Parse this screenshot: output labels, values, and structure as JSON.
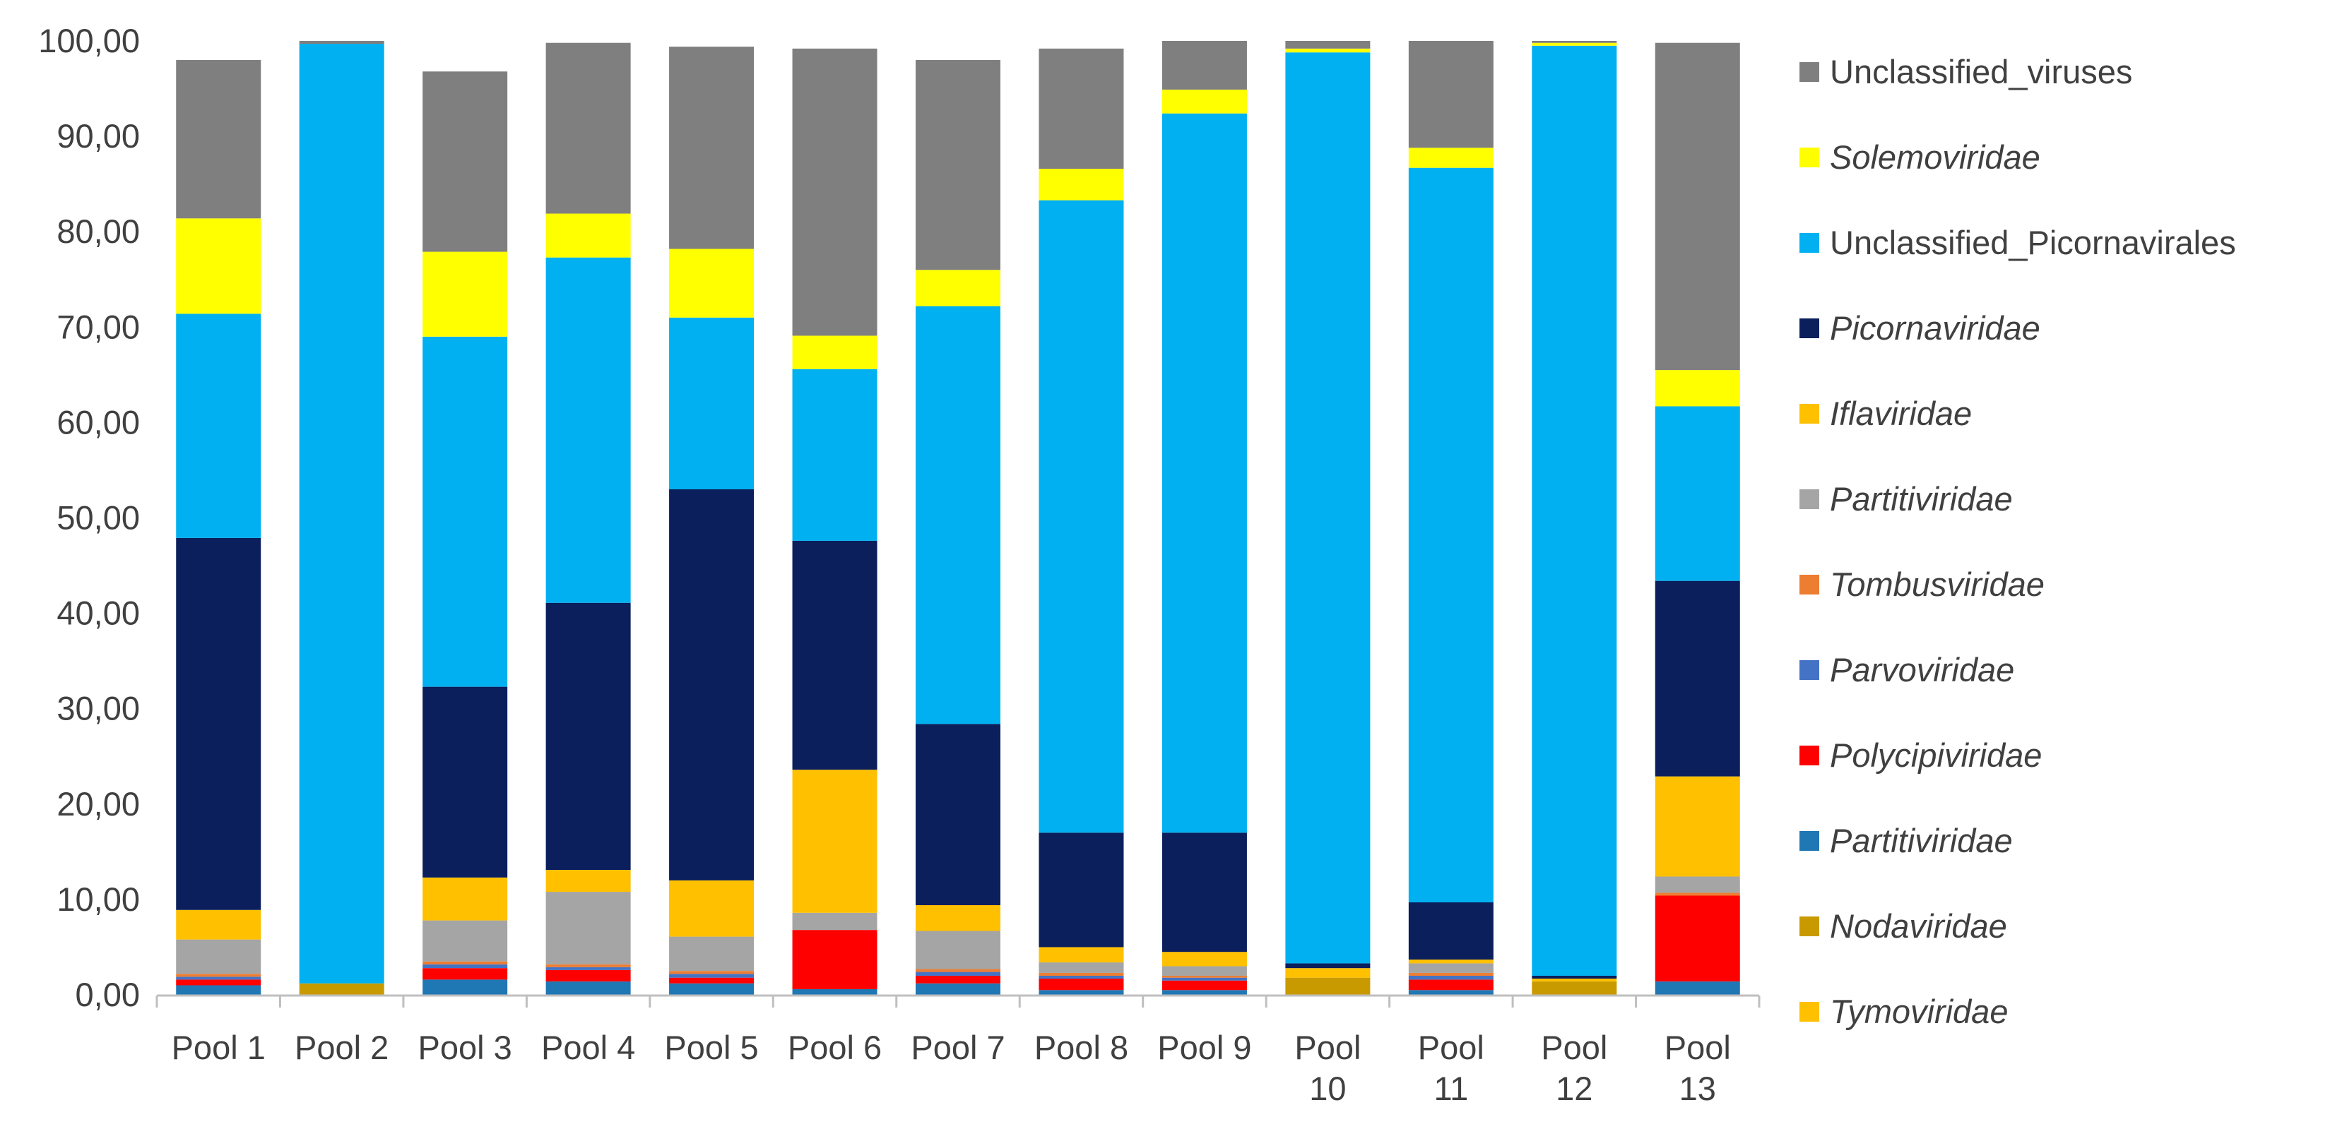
{
  "chart_data": {
    "type": "bar",
    "stacked": true,
    "title": "",
    "xlabel": "",
    "ylabel": "",
    "ylim": [
      0,
      100
    ],
    "ytick_labels": [
      "0,00",
      "10,00",
      "20,00",
      "30,00",
      "40,00",
      "50,00",
      "60,00",
      "70,00",
      "80,00",
      "90,00",
      "100,00"
    ],
    "categories": [
      [
        "Pool 1"
      ],
      [
        "Pool 2"
      ],
      [
        "Pool 3"
      ],
      [
        "Pool 4"
      ],
      [
        "Pool 5"
      ],
      [
        "Pool 6"
      ],
      [
        "Pool 7"
      ],
      [
        "Pool 8"
      ],
      [
        "Pool 9"
      ],
      [
        "Pool",
        "10"
      ],
      [
        "Pool",
        "11"
      ],
      [
        "Pool",
        "12"
      ],
      [
        "Pool",
        "13"
      ]
    ],
    "legend_position": "right",
    "grid": false,
    "series": [
      {
        "name": "Tymoviridae",
        "italic": true,
        "color": "#FFC000",
        "values": [
          0.0,
          0.0,
          0.0,
          0.0,
          0.0,
          0.0,
          0.0,
          0.0,
          0.0,
          0.0,
          0.0,
          0.0,
          0.0
        ]
      },
      {
        "name": "Nodaviridae",
        "italic": true,
        "color": "#C89A00",
        "values": [
          0.0,
          1.2,
          0.0,
          0.0,
          0.0,
          0.0,
          0.0,
          0.0,
          0.0,
          1.8,
          0.0,
          1.4,
          0.0
        ]
      },
      {
        "name": "Partitiviridae",
        "italic": true,
        "color": "#1F77B4",
        "values": [
          1.0,
          0.0,
          1.6,
          1.4,
          1.2,
          0.6,
          1.2,
          0.5,
          0.5,
          0.0,
          0.5,
          0.0,
          1.4
        ]
      },
      {
        "name": "Polycipiviridae",
        "italic": true,
        "color": "#FF0000",
        "values": [
          0.6,
          0.0,
          1.2,
          1.2,
          0.6,
          6.2,
          0.8,
          1.2,
          1.0,
          0.0,
          1.1,
          0.0,
          9.0
        ]
      },
      {
        "name": "Parvoviridae",
        "italic": true,
        "color": "#4472C4",
        "values": [
          0.3,
          0.0,
          0.4,
          0.3,
          0.4,
          0.0,
          0.4,
          0.3,
          0.3,
          0.0,
          0.4,
          0.0,
          0.0
        ]
      },
      {
        "name": "Tombusviridae",
        "italic": true,
        "color": "#ED7D31",
        "values": [
          0.3,
          0.0,
          0.3,
          0.3,
          0.3,
          0.0,
          0.3,
          0.3,
          0.2,
          0.0,
          0.3,
          0.0,
          0.3
        ]
      },
      {
        "name": "Partitiviridae",
        "italic": true,
        "color": "#A5A5A5",
        "values": [
          3.6,
          0.0,
          4.3,
          7.6,
          3.6,
          1.8,
          4.0,
          1.1,
          1.0,
          0.0,
          1.0,
          0.0,
          1.7
        ]
      },
      {
        "name": "Iflaviridae",
        "italic": true,
        "color": "#FFC000",
        "values": [
          3.1,
          0.0,
          4.5,
          2.3,
          5.9,
          15.0,
          2.7,
          1.6,
          1.5,
          1.0,
          0.4,
          0.3,
          10.5
        ]
      },
      {
        "name": "Picornaviridae",
        "italic": true,
        "color": "#0A1F5C",
        "values": [
          39.0,
          0.0,
          20.0,
          28.0,
          41.0,
          24.0,
          19.0,
          12.0,
          12.5,
          0.5,
          6.0,
          0.3,
          20.5
        ]
      },
      {
        "name": "Unclassified_Picornavirales",
        "italic": false,
        "color": "#00B0F0",
        "values": [
          23.5,
          98.5,
          36.7,
          36.2,
          18.0,
          18.0,
          43.8,
          66.3,
          75.4,
          95.5,
          77.0,
          97.5,
          18.3
        ]
      },
      {
        "name": "Solemoviridae",
        "italic": true,
        "color": "#FFFF00",
        "values": [
          10.0,
          0.0,
          8.9,
          4.6,
          7.2,
          3.5,
          3.8,
          3.3,
          2.5,
          0.4,
          2.1,
          0.3,
          3.8
        ]
      },
      {
        "name": "Unclassified_viruses",
        "italic": false,
        "color": "#7F7F7F",
        "values": [
          16.6,
          0.3,
          18.9,
          17.9,
          21.2,
          30.1,
          22.0,
          12.6,
          5.1,
          0.8,
          11.2,
          0.2,
          34.3
        ]
      }
    ]
  }
}
